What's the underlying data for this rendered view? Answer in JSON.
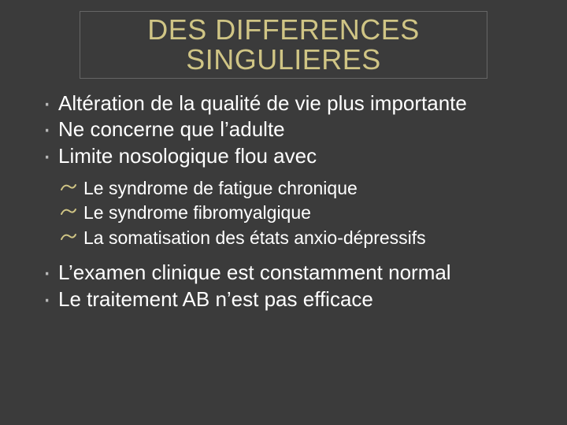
{
  "colors": {
    "background": "#3b3b3b",
    "title_text": "#d0c585",
    "title_border": "#666666",
    "body_text": "#ffffff",
    "bullet": "#b8b8b8",
    "sub_bullet": "#d0c585"
  },
  "typography": {
    "title_font": "\"Century Gothic\", \"Gill Sans\", Arial, sans-serif",
    "title_size_pt": 36,
    "body_font": "Arial, Helvetica, sans-serif",
    "body_size_pt": 26,
    "sub_size_pt": 23
  },
  "title": {
    "line1": "DES DIFFERENCES",
    "line2": "SINGULIERES"
  },
  "bullets_top": [
    "Altération de la qualité de vie plus importante",
    "Ne concerne que l’adulte",
    "Limite nosologique flou avec"
  ],
  "sub_bullets": [
    "Le syndrome de fatigue chronique",
    "Le syndrome fibromyalgique",
    "La somatisation des états anxio-dépressifs"
  ],
  "bullets_bottom": [
    "L’examen clinique est constamment normal",
    "Le traitement AB n’est pas efficace"
  ]
}
